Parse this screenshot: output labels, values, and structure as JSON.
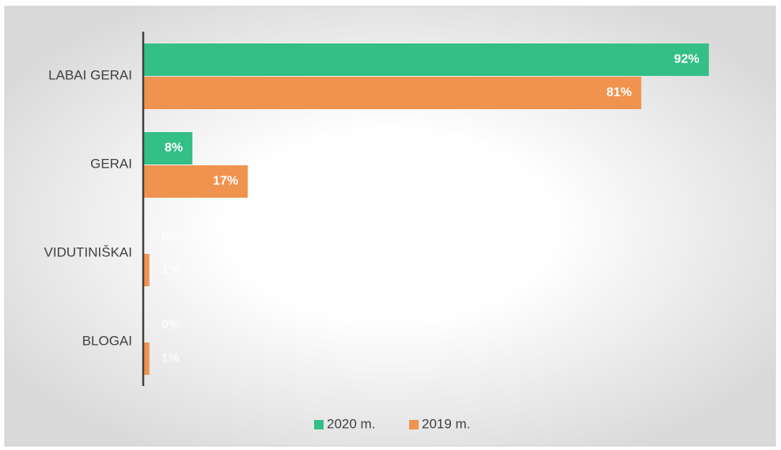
{
  "chart_data": {
    "type": "bar",
    "orientation": "horizontal",
    "categories": [
      "LABAI GERAI",
      "GERAI",
      "VIDUTINIŠKAI",
      "BLOGAI"
    ],
    "series": [
      {
        "name": "2020 m.",
        "color": "#33bf86",
        "values": [
          92,
          8,
          0,
          0
        ],
        "value_labels": [
          "92%",
          "8%",
          "0%",
          "0%"
        ]
      },
      {
        "name": "2019 m.",
        "color": "#f0934e",
        "values": [
          81,
          17,
          1,
          1
        ],
        "value_labels": [
          "81%",
          "17%",
          "1%",
          "1%"
        ]
      }
    ],
    "legend": "bottom"
  }
}
